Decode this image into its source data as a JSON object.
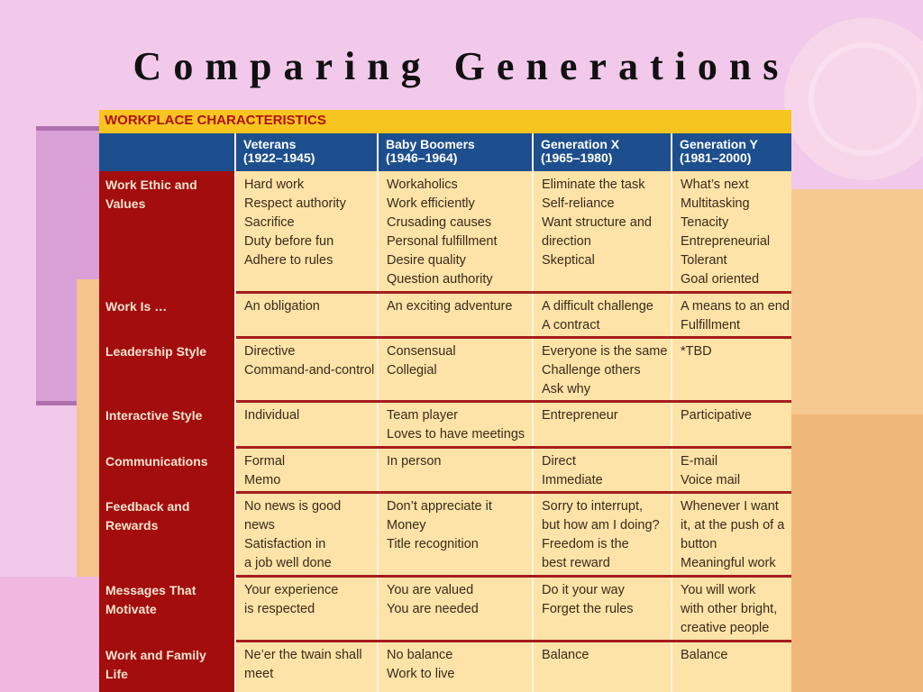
{
  "title": "Comparing Generations",
  "table": {
    "caption": "WORKPLACE CHARACTERISTICS",
    "columns": [
      {
        "name": "Veterans",
        "years": "(1922–1945)"
      },
      {
        "name": "Baby Boomers",
        "years": "(1946–1964)"
      },
      {
        "name": "Generation X",
        "years": "(1965–1980)"
      },
      {
        "name": "Generation Y",
        "years": "(1981–2000)"
      }
    ],
    "rows": [
      {
        "label": [
          "Work Ethic and",
          "Values"
        ],
        "cells": [
          [
            "Hard work",
            "Respect authority",
            "Sacrifice",
            "Duty before fun",
            "Adhere to rules"
          ],
          [
            "Workaholics",
            "Work efficiently",
            "Crusading causes",
            "Personal fulfillment",
            "Desire quality",
            "Question authority"
          ],
          [
            "Eliminate the task",
            "Self-reliance",
            "Want structure and",
            "direction",
            "Skeptical"
          ],
          [
            "What’s next",
            "Multitasking",
            "Tenacity",
            "Entrepreneurial",
            "Tolerant",
            "Goal oriented"
          ]
        ]
      },
      {
        "label": [
          "Work Is …"
        ],
        "cells": [
          [
            "An obligation"
          ],
          [
            "An exciting adventure"
          ],
          [
            "A difficult challenge",
            "A contract"
          ],
          [
            "A means to an end",
            "Fulfillment"
          ]
        ]
      },
      {
        "label": [
          "Leadership Style"
        ],
        "cells": [
          [
            "Directive",
            "Command-and-control"
          ],
          [
            "Consensual",
            "Collegial"
          ],
          [
            "Everyone is the same",
            "Challenge others",
            "Ask why"
          ],
          [
            "*TBD"
          ]
        ]
      },
      {
        "label": [
          "Interactive Style"
        ],
        "cells": [
          [
            "Individual"
          ],
          [
            "Team player",
            "Loves to have meetings"
          ],
          [
            "Entrepreneur"
          ],
          [
            "Participative"
          ]
        ]
      },
      {
        "label": [
          "Communications"
        ],
        "cells": [
          [
            "Formal",
            "Memo"
          ],
          [
            "In person"
          ],
          [
            "Direct",
            "Immediate"
          ],
          [
            "E-mail",
            "Voice mail"
          ]
        ]
      },
      {
        "label": [
          "Feedback and",
          "Rewards"
        ],
        "cells": [
          [
            "No news is good",
            "news",
            "Satisfaction in",
            "a job well done"
          ],
          [
            "Don’t appreciate it",
            "Money",
            "Title recognition"
          ],
          [
            "Sorry to interrupt,",
            "but how am I doing?",
            "Freedom is the",
            "best reward"
          ],
          [
            "Whenever I want",
            "it, at the push of a",
            "button",
            "Meaningful work"
          ]
        ]
      },
      {
        "label": [
          "Messages That",
          "Motivate"
        ],
        "cells": [
          [
            "Your experience",
            "is respected"
          ],
          [
            "You are valued",
            "You are needed"
          ],
          [
            "Do it your way",
            "Forget the rules"
          ],
          [
            "You will work",
            "with other bright,",
            "creative people"
          ]
        ]
      },
      {
        "label": [
          "Work and Family",
          "Life"
        ],
        "cells": [
          [
            "Ne’er the twain shall",
            "meet"
          ],
          [
            "No balance",
            "Work to live"
          ],
          [
            "Balance"
          ],
          [
            "Balance"
          ]
        ]
      }
    ]
  }
}
